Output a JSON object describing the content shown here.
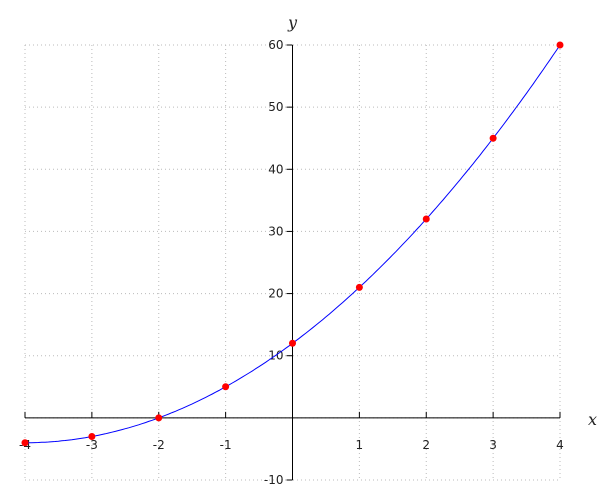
{
  "chart_data": {
    "type": "line",
    "title": "",
    "xlabel": "x",
    "ylabel": "y",
    "xlim": [
      -4,
      4
    ],
    "ylim": [
      -10,
      60
    ],
    "grid": true,
    "x_ticks": [
      "-4",
      "-3",
      "-2",
      "-1",
      "1",
      "2",
      "3",
      "4"
    ],
    "y_ticks": [
      "-10",
      "10",
      "20",
      "30",
      "40",
      "50",
      "60"
    ],
    "curve": {
      "color": "#0000ff"
    },
    "points": {
      "color": "#ff0000",
      "x": [
        -4,
        -3,
        -2,
        -1,
        0,
        1,
        2,
        3,
        4
      ],
      "y": [
        -4,
        -3,
        0,
        5,
        12,
        21,
        32,
        45,
        60
      ]
    }
  }
}
